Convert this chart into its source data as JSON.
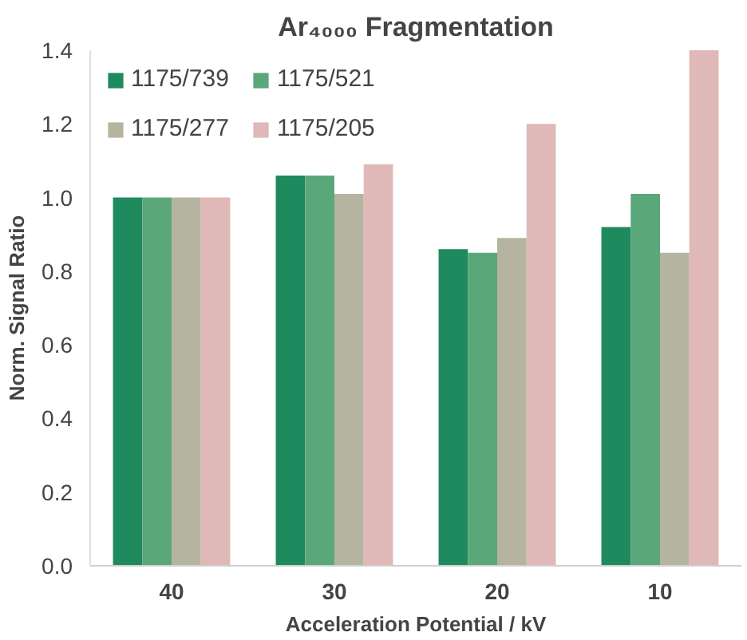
{
  "chart_data": {
    "type": "bar",
    "title": "Ar₄₀₀₀ Fragmentation",
    "xlabel": "Acceleration Potential / kV",
    "ylabel": "Norm. Signal Ratio",
    "categories": [
      "40",
      "30",
      "20",
      "10"
    ],
    "series": [
      {
        "name": "1175/739",
        "color": "#1e8a5e",
        "values": [
          1.0,
          1.06,
          0.86,
          0.92
        ]
      },
      {
        "name": "1175/521",
        "color": "#5aa77a",
        "values": [
          1.0,
          1.06,
          0.85,
          1.01
        ]
      },
      {
        "name": "1175/277",
        "color": "#b4b4a0",
        "values": [
          1.0,
          1.01,
          0.89,
          0.85
        ]
      },
      {
        "name": "1175/205",
        "color": "#e0b8b8",
        "values": [
          1.0,
          1.09,
          1.2,
          1.4
        ]
      }
    ],
    "ylim": [
      0,
      1.4
    ],
    "yticks": [
      {
        "value": 0,
        "label": "0.0"
      },
      0.2,
      0.4,
      0.6,
      0.8,
      {
        "value": 1,
        "label": "1.0"
      },
      1.2,
      1.4
    ],
    "grid": false,
    "legend": "top left"
  }
}
